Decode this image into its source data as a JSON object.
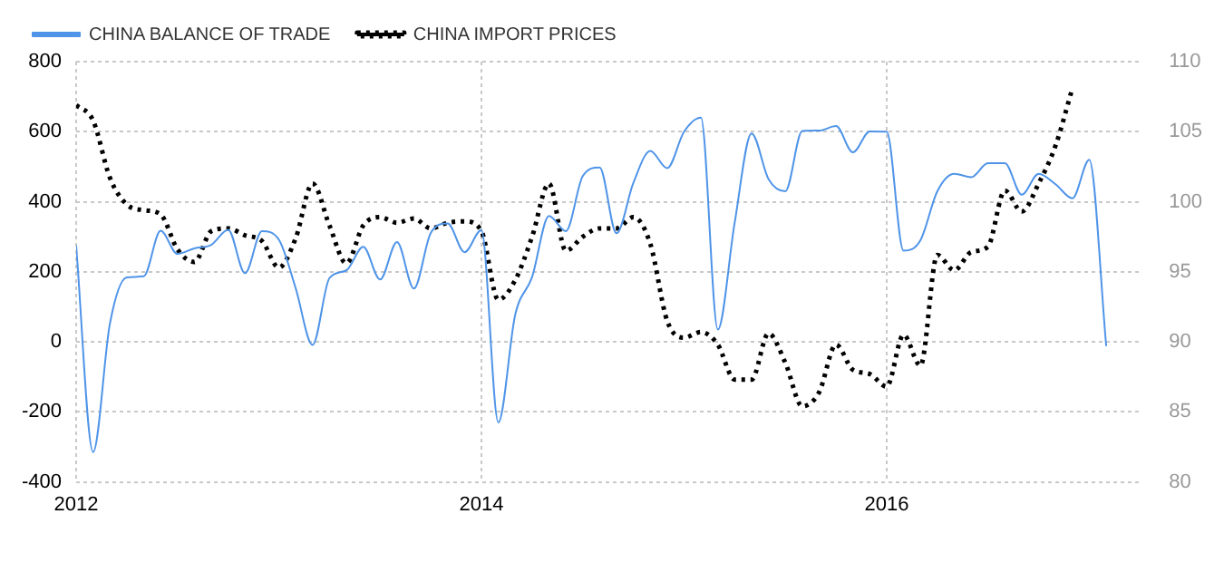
{
  "chart_data": {
    "type": "line",
    "x": [
      "2012-01",
      "2012-02",
      "2012-03",
      "2012-04",
      "2012-05",
      "2012-06",
      "2012-07",
      "2012-08",
      "2012-09",
      "2012-10",
      "2012-11",
      "2012-12",
      "2013-01",
      "2013-02",
      "2013-03",
      "2013-04",
      "2013-05",
      "2013-06",
      "2013-07",
      "2013-08",
      "2013-09",
      "2013-10",
      "2013-11",
      "2013-12",
      "2014-01",
      "2014-02",
      "2014-03",
      "2014-04",
      "2014-05",
      "2014-06",
      "2014-07",
      "2014-08",
      "2014-09",
      "2014-10",
      "2014-11",
      "2014-12",
      "2015-01",
      "2015-02",
      "2015-03",
      "2015-04",
      "2015-05",
      "2015-06",
      "2015-07",
      "2015-08",
      "2015-09",
      "2015-10",
      "2015-11",
      "2015-12",
      "2016-01",
      "2016-02",
      "2016-03",
      "2016-04",
      "2016-05",
      "2016-06",
      "2016-07",
      "2016-08",
      "2016-09",
      "2016-10",
      "2016-11",
      "2016-12",
      "2017-01",
      "2017-02"
    ],
    "series": [
      {
        "name": "CHINA BALANCE OF TRADE",
        "color": "#4f94e8",
        "line_style": "solid",
        "values": [
          273,
          -315,
          53,
          184,
          187,
          317,
          251,
          267,
          277,
          320,
          196,
          316,
          292,
          153,
          -9,
          182,
          204,
          271,
          178,
          285,
          152,
          311,
          338,
          256,
          319,
          -230,
          77,
          185,
          359,
          316,
          473,
          498,
          310,
          454,
          545,
          496,
          600,
          640,
          35,
          341,
          595,
          465,
          430,
          602,
          603,
          616,
          541,
          601,
          600,
          260,
          290,
          430,
          480,
          470,
          510,
          510,
          420,
          480,
          450,
          410,
          520,
          -10
        ]
      },
      {
        "name": "CHINA IMPORT PRICES",
        "color": "#000000",
        "line_style": "dotted",
        "axis": "y2",
        "values": [
          106.9,
          105.8,
          101.7,
          99.8,
          99.4,
          99.1,
          96.6,
          95.7,
          97.9,
          98.1,
          97.6,
          97.2,
          95.3,
          97.4,
          101.3,
          98.3,
          95.6,
          98.3,
          98.9,
          98.5,
          98.8,
          98.1,
          98.5,
          98.6,
          97.9,
          93.0,
          94.4,
          97.5,
          101.3,
          96.5,
          97.5,
          98.1,
          98.1,
          98.9,
          97.0,
          91.5,
          90.3,
          90.7,
          89.8,
          87.3,
          87.3,
          90.6,
          88.5,
          85.4,
          86.4,
          89.8,
          88.0,
          87.7,
          86.8,
          90.5,
          88.3,
          96.2,
          95.1,
          96.4,
          96.8,
          100.8,
          99.3,
          101.3,
          104.0,
          108.1,
          null,
          null
        ]
      }
    ],
    "xlim": [
      "2012-01",
      "2017-04"
    ],
    "xticks": [
      "2012",
      "2014",
      "2016"
    ],
    "ylim": [
      -400,
      800
    ],
    "yticks": [
      -400,
      -200,
      0,
      200,
      400,
      600,
      800
    ],
    "y2lim": [
      80,
      110
    ],
    "y2ticks": [
      80,
      85,
      90,
      95,
      100,
      105,
      110
    ],
    "grid": true,
    "legend": "top left",
    "marker": "none"
  }
}
